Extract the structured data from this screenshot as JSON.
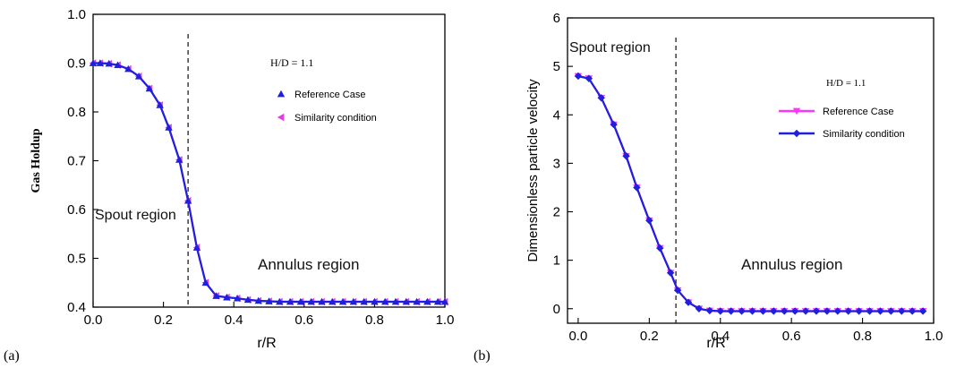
{
  "chart_data": [
    {
      "type": "line",
      "panel_label": "(a)",
      "xlabel": "r/R",
      "ylabel": "Gas Holdup",
      "xlim": [
        0.0,
        1.0
      ],
      "ylim": [
        0.4,
        1.0
      ],
      "xticks": [
        "0.0",
        "0.2",
        "0.4",
        "0.6",
        "0.8",
        "1.0"
      ],
      "yticks": [
        "0.4",
        "0.5",
        "0.6",
        "0.7",
        "0.8",
        "0.9",
        "1.0"
      ],
      "annotation": "H/D = 1.1",
      "legend_position": "top-right",
      "region_labels": {
        "spout": "Spout region",
        "annulus": "Annulus region"
      },
      "divider_x": 0.27,
      "x": [
        0.0,
        0.02,
        0.045,
        0.07,
        0.1,
        0.13,
        0.16,
        0.19,
        0.215,
        0.245,
        0.27,
        0.295,
        0.32,
        0.35,
        0.38,
        0.41,
        0.44,
        0.47,
        0.5,
        0.53,
        0.56,
        0.59,
        0.62,
        0.65,
        0.68,
        0.71,
        0.74,
        0.77,
        0.8,
        0.83,
        0.86,
        0.89,
        0.92,
        0.95,
        0.98,
        1.0
      ],
      "series": [
        {
          "name": "Reference Case",
          "marker": "triangle-up",
          "color": "#1f1fe0",
          "values": [
            0.9,
            0.9,
            0.899,
            0.896,
            0.888,
            0.873,
            0.848,
            0.814,
            0.768,
            0.702,
            0.618,
            0.522,
            0.45,
            0.423,
            0.42,
            0.418,
            0.415,
            0.413,
            0.412,
            0.411,
            0.411,
            0.411,
            0.411,
            0.411,
            0.411,
            0.411,
            0.411,
            0.411,
            0.411,
            0.411,
            0.411,
            0.411,
            0.411,
            0.411,
            0.411,
            0.411
          ]
        },
        {
          "name": "Similarity condition",
          "marker": "triangle-left",
          "color": "#e040e0",
          "values": [
            0.9,
            0.9,
            0.899,
            0.896,
            0.888,
            0.873,
            0.848,
            0.814,
            0.768,
            0.702,
            0.618,
            0.522,
            0.45,
            0.423,
            0.42,
            0.418,
            0.415,
            0.413,
            0.412,
            0.411,
            0.411,
            0.411,
            0.411,
            0.411,
            0.411,
            0.411,
            0.411,
            0.411,
            0.411,
            0.411,
            0.411,
            0.411,
            0.411,
            0.411,
            0.411,
            0.411
          ]
        }
      ]
    },
    {
      "type": "line",
      "panel_label": "(b)",
      "xlabel": "r/R",
      "ylabel": "Dimensionless particle velocity",
      "xlim": [
        -0.03,
        1.0
      ],
      "ylim": [
        -0.3,
        6.0
      ],
      "xticks": [
        "0.0",
        "0.2",
        "0.4",
        "0.6",
        "0.8",
        "1.0"
      ],
      "yticks": [
        "0",
        "1",
        "2",
        "3",
        "4",
        "5",
        "6"
      ],
      "annotation": "H/D = 1.1",
      "legend_position": "top-right",
      "region_labels": {
        "spout": "Spout region",
        "annulus": "Annulus region"
      },
      "divider_x": 0.275,
      "x": [
        0.0,
        0.03,
        0.065,
        0.1,
        0.135,
        0.165,
        0.2,
        0.23,
        0.26,
        0.28,
        0.31,
        0.34,
        0.37,
        0.4,
        0.43,
        0.46,
        0.49,
        0.52,
        0.55,
        0.58,
        0.61,
        0.64,
        0.67,
        0.7,
        0.73,
        0.76,
        0.79,
        0.82,
        0.85,
        0.88,
        0.91,
        0.94,
        0.97
      ],
      "series": [
        {
          "name": "Reference Case",
          "marker": "triangle-down",
          "color": "#ff33ff",
          "values": [
            4.8,
            4.75,
            4.35,
            3.8,
            3.15,
            2.5,
            1.82,
            1.25,
            0.74,
            0.38,
            0.13,
            0.0,
            -0.04,
            -0.05,
            -0.05,
            -0.05,
            -0.05,
            -0.05,
            -0.05,
            -0.05,
            -0.05,
            -0.05,
            -0.05,
            -0.05,
            -0.05,
            -0.05,
            -0.05,
            -0.05,
            -0.05,
            -0.05,
            -0.05,
            -0.05,
            -0.05
          ]
        },
        {
          "name": "Similarity condition",
          "marker": "diamond",
          "color": "#1f1fe0",
          "values": [
            4.8,
            4.75,
            4.35,
            3.8,
            3.15,
            2.5,
            1.82,
            1.25,
            0.74,
            0.38,
            0.13,
            0.0,
            -0.04,
            -0.05,
            -0.05,
            -0.05,
            -0.05,
            -0.05,
            -0.05,
            -0.05,
            -0.05,
            -0.05,
            -0.05,
            -0.05,
            -0.05,
            -0.05,
            -0.05,
            -0.05,
            -0.05,
            -0.05,
            -0.05,
            -0.05,
            -0.05
          ]
        }
      ]
    }
  ]
}
